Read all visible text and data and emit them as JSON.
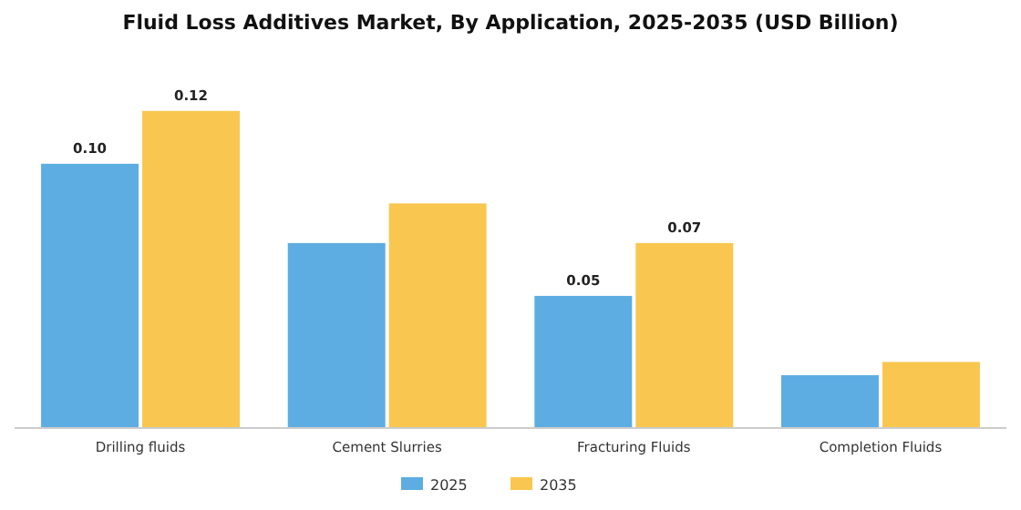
{
  "chart_data": {
    "type": "bar",
    "title": "Fluid Loss Additives Market, By Application, 2025-2035 (USD Billion)",
    "categories": [
      "Drilling fluids",
      "Cement Slurries",
      "Fracturing Fluids",
      "Completion Fluids"
    ],
    "series": [
      {
        "name": "2025",
        "color": "#5dade2",
        "values": [
          0.1,
          0.07,
          0.05,
          0.02
        ],
        "value_labels": [
          "0.10",
          null,
          "0.05",
          null
        ]
      },
      {
        "name": "2035",
        "color": "#f9c74f",
        "values": [
          0.12,
          0.085,
          0.07,
          0.025
        ],
        "value_labels": [
          "0.12",
          null,
          "0.07",
          null
        ]
      }
    ],
    "legend": "bottom"
  }
}
